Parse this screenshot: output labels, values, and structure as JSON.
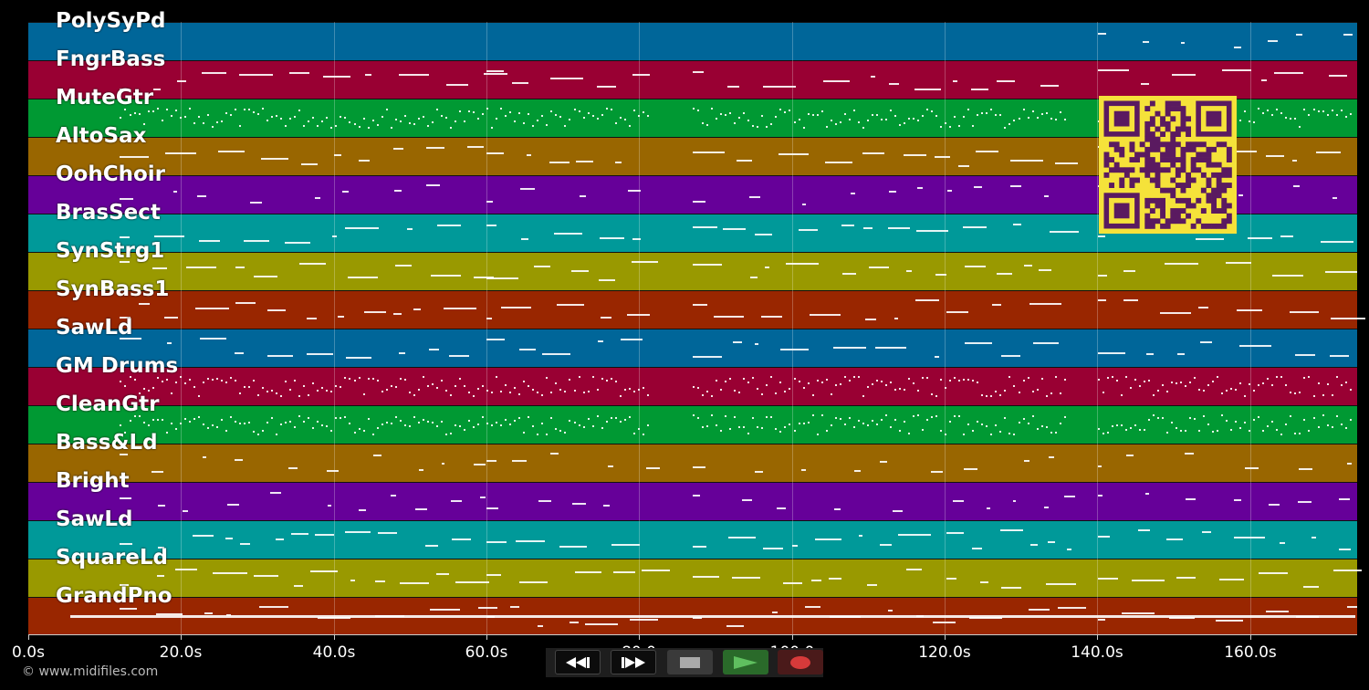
{
  "tracks": [
    {
      "name": "PolySyPd",
      "color": "#006699"
    },
    {
      "name": "FngrBass",
      "color": "#990033"
    },
    {
      "name": "MuteGtr",
      "color": "#009933"
    },
    {
      "name": "AltoSax",
      "color": "#996600"
    },
    {
      "name": "OohChoir",
      "color": "#660099"
    },
    {
      "name": "BrasSect",
      "color": "#009999"
    },
    {
      "name": "SynStrg1",
      "color": "#999900"
    },
    {
      "name": "SynBass1",
      "color": "#992600"
    },
    {
      "name": "SawLd",
      "color": "#006699"
    },
    {
      "name": "GM Drums",
      "color": "#990033"
    },
    {
      "name": "CleanGtr",
      "color": "#009933"
    },
    {
      "name": "Bass&Ld",
      "color": "#996600"
    },
    {
      "name": "Bright",
      "color": "#660099"
    },
    {
      "name": "SawLd",
      "color": "#009999"
    },
    {
      "name": "SquareLd",
      "color": "#999900"
    },
    {
      "name": "GrandPno",
      "color": "#992600"
    }
  ],
  "timeline": {
    "ticks": [
      "0.0s",
      "20.0s",
      "40.0s",
      "60.0s",
      "80.0",
      "100.0",
      "120.0s",
      "140.0s",
      "160.0s"
    ],
    "tick_seconds": [
      0,
      20,
      40,
      60,
      80,
      100,
      120,
      140,
      160
    ],
    "max_seconds": 174
  },
  "transport": {
    "rewind_icon": "rewind-icon",
    "fast_forward_icon": "fast-forward-icon",
    "stop_icon": "stop-icon",
    "play_icon": "play-icon",
    "record_icon": "record-icon",
    "play_color": "#5fbf5f",
    "record_color": "#d63a3a"
  },
  "credit": "© www.midifiles.com",
  "qr": {
    "color": "#f5e23a",
    "module_color": "#5a1a60"
  }
}
